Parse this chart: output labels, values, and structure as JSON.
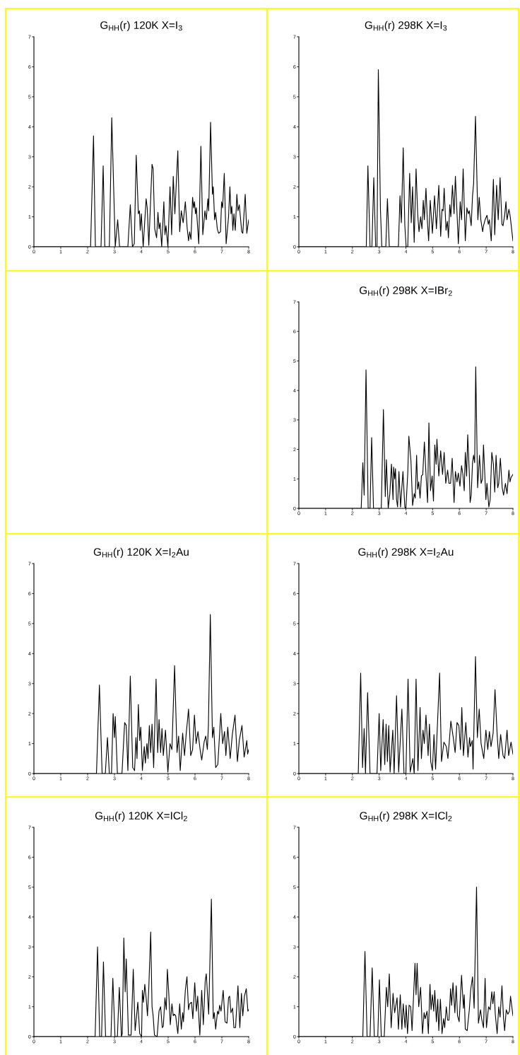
{
  "chart_data": [
    {
      "type": "line",
      "title": "G$_{HH}$(r) 120K X=I$_{3}$",
      "color": "#000000",
      "xlim": [
        0,
        8
      ],
      "ylim": [
        0,
        7
      ],
      "xticks": [
        0,
        1,
        2,
        3,
        4,
        5,
        6,
        7,
        8
      ],
      "yticks": [
        0,
        1,
        2,
        3,
        4,
        5,
        6,
        7
      ],
      "x": [
        0,
        2.11,
        2.22,
        2.29,
        2.5,
        2.58,
        2.64,
        2.81,
        2.9,
        3.03,
        3.12,
        3.19,
        3.5,
        3.59,
        3.67,
        3.74,
        3.81,
        3.89,
        3.93,
        3.96,
        4.0,
        4.07,
        4.18,
        4.22,
        4.28,
        4.4,
        4.44,
        4.5,
        4.57,
        4.62,
        4.66,
        4.7,
        4.76,
        4.84,
        4.88,
        4.92,
        4.99,
        5.07,
        5.13,
        5.19,
        5.25,
        5.36,
        5.43,
        5.49,
        5.56,
        5.64,
        5.71,
        5.76,
        5.8,
        5.85,
        5.91,
        5.95,
        5.98,
        6.02,
        6.05,
        6.14,
        6.22,
        6.29,
        6.37,
        6.42,
        6.48,
        6.51,
        6.58,
        6.65,
        6.68,
        6.73,
        6.77,
        6.83,
        6.88,
        6.95,
        6.99,
        7.03,
        7.09,
        7.16,
        7.25,
        7.3,
        7.34,
        7.37,
        7.41,
        7.45,
        7.5,
        7.56,
        7.6,
        7.65,
        7.74,
        7.78,
        7.87,
        7.93,
        8.0
      ],
      "values": [
        0,
        0,
        3.7,
        0,
        0,
        2.7,
        0,
        0,
        4.3,
        0,
        0.9,
        0,
        0,
        1.4,
        0,
        0.1,
        3.05,
        1.1,
        1.2,
        0.55,
        1.1,
        0,
        1.6,
        1.3,
        0.05,
        2.75,
        2.6,
        0.6,
        0.3,
        1.15,
        0.6,
        0.8,
        0,
        1.5,
        0.4,
        0.7,
        0,
        2.0,
        0.4,
        2.35,
        1.1,
        3.2,
        0.5,
        1.2,
        0.8,
        1.5,
        0.6,
        0.2,
        0.5,
        0.25,
        1.65,
        1.3,
        1.5,
        1.1,
        1.3,
        0.1,
        3.35,
        0.4,
        1.2,
        0.9,
        1.6,
        1.2,
        4.15,
        1.75,
        2.0,
        0.9,
        1.15,
        0.6,
        0.45,
        0.5,
        1.5,
        1.3,
        2.45,
        0.1,
        1.0,
        2.0,
        1.1,
        1.35,
        0.55,
        1.1,
        0.55,
        1.75,
        1.2,
        1.4,
        0.5,
        0.45,
        1.75,
        0.45,
        0.9
      ]
    },
    {
      "type": "line",
      "title": "G$_{HH}$(r) 298K X=I$_{3}$",
      "color": "#000000",
      "xlim": [
        0,
        8
      ],
      "ylim": [
        0,
        7
      ],
      "xticks": [
        0,
        1,
        2,
        3,
        4,
        5,
        6,
        7,
        8
      ],
      "yticks": [
        0,
        1,
        2,
        3,
        4,
        5,
        6,
        7
      ],
      "x": [
        0,
        2.52,
        2.58,
        2.66,
        2.73,
        2.8,
        2.87,
        2.92,
        2.97,
        3.05,
        3.1,
        3.25,
        3.31,
        3.38,
        3.72,
        3.78,
        3.83,
        3.9,
        3.96,
        4.01,
        4.07,
        4.14,
        4.2,
        4.25,
        4.31,
        4.38,
        4.44,
        4.49,
        4.55,
        4.6,
        4.65,
        4.69,
        4.75,
        4.8,
        4.85,
        4.91,
        4.99,
        5.07,
        5.14,
        5.23,
        5.3,
        5.35,
        5.39,
        5.43,
        5.5,
        5.55,
        5.59,
        5.64,
        5.68,
        5.74,
        5.8,
        5.85,
        5.96,
        6.03,
        6.08,
        6.14,
        6.22,
        6.28,
        6.33,
        6.37,
        6.44,
        6.49,
        6.53,
        6.6,
        6.69,
        6.74,
        6.8,
        6.87,
        6.9,
        6.96,
        7.03,
        7.08,
        7.12,
        7.19,
        7.27,
        7.32,
        7.39,
        7.45,
        7.52,
        7.59,
        7.63,
        7.69,
        7.74,
        7.78,
        7.85,
        7.9,
        8.0
      ],
      "values": [
        0,
        0,
        2.7,
        0,
        0,
        2.3,
        0,
        0,
        5.9,
        1.2,
        0,
        0,
        1.6,
        0,
        0,
        1.7,
        0.8,
        3.3,
        0.7,
        0,
        0,
        2.45,
        0.8,
        2.0,
        0.15,
        2.6,
        1.1,
        0.5,
        1.0,
        0.6,
        1.55,
        0.9,
        1.95,
        0.9,
        0.2,
        1.55,
        0.45,
        1.7,
        0.6,
        2.05,
        0.35,
        1.25,
        1.2,
        1.95,
        0.55,
        0.85,
        0.3,
        1.4,
        1.0,
        2.05,
        1.1,
        2.35,
        0.1,
        1.5,
        0.9,
        2.6,
        0.2,
        1.3,
        1.1,
        1.2,
        0.7,
        1.7,
        2.1,
        4.35,
        0.9,
        1.65,
        0.9,
        0.5,
        0.7,
        0.9,
        1.05,
        0.75,
        0.9,
        0.2,
        2.25,
        0.4,
        2.05,
        0.9,
        2.3,
        0.75,
        0.7,
        1.05,
        1.5,
        0.9,
        1.25,
        1.0,
        0.2
      ]
    },
    {
      "type": "line",
      "title": "G$_{HH}$(r) 298K X=IBr$_{2}$",
      "color": "#000000",
      "xlim": [
        0,
        8
      ],
      "ylim": [
        0,
        7
      ],
      "xticks": [
        0,
        1,
        2,
        3,
        4,
        5,
        6,
        7,
        8
      ],
      "yticks": [
        0,
        1,
        2,
        3,
        4,
        5,
        6,
        7
      ],
      "x": [
        0,
        2.33,
        2.39,
        2.44,
        2.51,
        2.59,
        2.66,
        2.72,
        2.79,
        3.08,
        3.16,
        3.23,
        3.27,
        3.34,
        3.4,
        3.46,
        3.52,
        3.54,
        3.58,
        3.61,
        3.65,
        3.69,
        3.74,
        3.8,
        3.89,
        3.96,
        4.0,
        4.07,
        4.11,
        4.19,
        4.25,
        4.31,
        4.35,
        4.4,
        4.44,
        4.48,
        4.53,
        4.58,
        4.63,
        4.69,
        4.76,
        4.81,
        4.86,
        4.92,
        4.98,
        5.03,
        5.08,
        5.13,
        5.16,
        5.23,
        5.3,
        5.37,
        5.43,
        5.49,
        5.56,
        5.61,
        5.67,
        5.73,
        5.8,
        5.85,
        5.91,
        5.96,
        6.02,
        6.08,
        6.13,
        6.18,
        6.22,
        6.27,
        6.31,
        6.37,
        6.4,
        6.44,
        6.49,
        6.53,
        6.57,
        6.61,
        6.68,
        6.75,
        6.81,
        6.86,
        6.9,
        6.99,
        7.03,
        7.1,
        7.15,
        7.21,
        7.27,
        7.32,
        7.37,
        7.43,
        7.47,
        7.53,
        7.6,
        7.65,
        7.72,
        7.78,
        7.85,
        7.89,
        7.93,
        8.0
      ],
      "values": [
        0,
        0,
        1.55,
        0.45,
        4.7,
        0,
        0,
        2.4,
        0,
        0,
        3.35,
        0.4,
        1.65,
        0,
        0.5,
        1.5,
        0.3,
        1.4,
        1.0,
        1.35,
        0.3,
        0.05,
        1.25,
        0.05,
        1.25,
        0.05,
        0,
        1.2,
        2.45,
        1.6,
        0.1,
        0.5,
        0.35,
        1.8,
        0.65,
        0.9,
        0.35,
        1.1,
        1.15,
        2.25,
        1.0,
        0.2,
        2.9,
        0.6,
        1.1,
        0.25,
        2.15,
        1.5,
        2.35,
        1.1,
        1.95,
        1.15,
        1.9,
        0.85,
        1.3,
        0.85,
        0.85,
        1.7,
        0.2,
        1.25,
        0.9,
        1.2,
        0.75,
        1.45,
        1.15,
        0.6,
        1.9,
        1.1,
        2.5,
        1.2,
        0.2,
        0.45,
        1.55,
        1.8,
        1.55,
        4.8,
        0.7,
        1.8,
        0.85,
        1.0,
        2.15,
        0.3,
        0.85,
        0.05,
        0.3,
        1.9,
        1.5,
        0.55,
        1.8,
        0.7,
        0.85,
        1.7,
        0.7,
        0.45,
        0.85,
        0.5,
        1.3,
        0.9,
        1.05,
        1.15
      ]
    },
    {
      "type": "line",
      "title": "G$_{HH}$(r) 120K X=I$_{2}$Au",
      "color": "#000000",
      "xlim": [
        0,
        8
      ],
      "ylim": [
        0,
        7
      ],
      "xticks": [
        0,
        1,
        2,
        3,
        4,
        5,
        6,
        7,
        8
      ],
      "yticks": [
        0,
        1,
        2,
        3,
        4,
        5,
        6,
        7
      ],
      "x": [
        0,
        2.33,
        2.44,
        2.54,
        2.66,
        2.74,
        2.81,
        2.89,
        2.95,
        3.0,
        3.03,
        3.11,
        3.28,
        3.38,
        3.44,
        3.5,
        3.59,
        3.68,
        3.75,
        3.8,
        3.84,
        3.89,
        3.94,
        3.98,
        4.04,
        4.11,
        4.15,
        4.21,
        4.25,
        4.3,
        4.35,
        4.4,
        4.46,
        4.55,
        4.61,
        4.66,
        4.72,
        4.77,
        4.82,
        4.9,
        4.99,
        5.07,
        5.14,
        5.24,
        5.33,
        5.39,
        5.45,
        5.54,
        5.61,
        5.67,
        5.76,
        5.84,
        5.91,
        5.98,
        6.04,
        6.11,
        6.19,
        6.25,
        6.34,
        6.4,
        6.46,
        6.5,
        6.57,
        6.65,
        6.7,
        6.77,
        6.85,
        6.96,
        7.03,
        7.1,
        7.15,
        7.22,
        7.31,
        7.39,
        7.49,
        7.58,
        7.65,
        7.75,
        7.83,
        7.93,
        7.96,
        8.0
      ],
      "values": [
        0,
        0,
        2.95,
        0,
        0,
        1.2,
        0,
        0,
        2.0,
        1.2,
        1.9,
        0,
        0,
        1.7,
        1.6,
        0.1,
        3.25,
        0.2,
        0.1,
        1.2,
        0.5,
        2.3,
        1.1,
        1.55,
        0.1,
        0.9,
        0.35,
        1.0,
        0.5,
        1.6,
        0.7,
        1.65,
        0.2,
        3.15,
        0.7,
        1.8,
        0.7,
        1.5,
        0.6,
        1.45,
        0.05,
        1.0,
        0.8,
        3.6,
        0.7,
        1.25,
        0.1,
        1.35,
        0.6,
        1.3,
        2.15,
        0.6,
        0.8,
        1.95,
        1.0,
        1.4,
        0.8,
        0.45,
        1.05,
        1.25,
        0.8,
        1.6,
        5.3,
        1.2,
        1.55,
        0.2,
        0.3,
        2.0,
        1.0,
        1.4,
        0.6,
        1.55,
        0.5,
        1.3,
        1.95,
        0.4,
        1.1,
        1.6,
        0.55,
        1.1,
        0.65,
        0.8
      ]
    },
    {
      "type": "line",
      "title": "G$_{HH}$(r) 298K X=I$_{2}$Au",
      "color": "#000000",
      "xlim": [
        0,
        8
      ],
      "ylim": [
        0,
        7
      ],
      "xticks": [
        0,
        1,
        2,
        3,
        4,
        5,
        6,
        7,
        8
      ],
      "yticks": [
        0,
        1,
        2,
        3,
        4,
        5,
        6,
        7
      ],
      "x": [
        0,
        2.22,
        2.31,
        2.38,
        2.44,
        2.49,
        2.57,
        2.66,
        2.92,
        3.0,
        3.06,
        3.15,
        3.21,
        3.26,
        3.31,
        3.36,
        3.41,
        3.51,
        3.56,
        3.65,
        3.73,
        3.85,
        3.93,
        4.0,
        4.08,
        4.16,
        4.26,
        4.31,
        4.38,
        4.45,
        4.53,
        4.58,
        4.64,
        4.69,
        4.75,
        4.83,
        4.88,
        4.93,
        4.99,
        5.05,
        5.11,
        5.17,
        5.26,
        5.33,
        5.42,
        5.51,
        5.57,
        5.62,
        5.68,
        5.77,
        5.84,
        5.91,
        5.98,
        6.04,
        6.09,
        6.15,
        6.24,
        6.32,
        6.38,
        6.41,
        6.48,
        6.51,
        6.6,
        6.67,
        6.74,
        6.81,
        6.91,
        6.99,
        7.06,
        7.12,
        7.18,
        7.26,
        7.33,
        7.41,
        7.47,
        7.54,
        7.63,
        7.69,
        7.78,
        7.84,
        7.93,
        8.0
      ],
      "values": [
        0,
        0,
        3.35,
        0.2,
        1.5,
        0,
        2.7,
        0,
        0,
        2.0,
        0.1,
        1.8,
        0.3,
        1.65,
        0.4,
        1.6,
        0.05,
        1.45,
        0,
        2.6,
        0.05,
        2.15,
        0,
        0,
        3.15,
        0.05,
        0.5,
        0,
        3.15,
        0.1,
        2.2,
        0.5,
        1.45,
        1.0,
        1.95,
        0.6,
        1.65,
        0.4,
        0.1,
        1.3,
        0.15,
        1.45,
        3.35,
        0.4,
        1.05,
        0.9,
        0.5,
        1.05,
        1.75,
        1.2,
        0.7,
        1.7,
        1.6,
        0.8,
        2.2,
        0.6,
        1.7,
        0.55,
        1.2,
        0.9,
        1.1,
        0.15,
        3.9,
        1.2,
        2.15,
        1.0,
        0.5,
        1.45,
        0.8,
        1.4,
        0.9,
        1.35,
        2.8,
        1.3,
        0.5,
        1.3,
        0.6,
        0.5,
        1.45,
        0.6,
        1.05,
        0.65
      ]
    },
    {
      "type": "line",
      "title": "G$_{HH}$(r) 120K X=ICl$_{2}$",
      "color": "#000000",
      "xlim": [
        0,
        8
      ],
      "ylim": [
        0,
        7
      ],
      "xticks": [
        0,
        1,
        2,
        3,
        4,
        5,
        6,
        7,
        8
      ],
      "yticks": [
        0,
        1,
        2,
        3,
        4,
        5,
        6,
        7
      ],
      "x": [
        0,
        2.28,
        2.37,
        2.45,
        2.52,
        2.59,
        2.67,
        2.87,
        2.94,
        3.02,
        3.11,
        3.18,
        3.26,
        3.29,
        3.35,
        3.4,
        3.44,
        3.52,
        3.62,
        3.7,
        3.77,
        3.82,
        3.87,
        3.94,
        4.01,
        4.04,
        4.08,
        4.13,
        4.18,
        4.23,
        4.28,
        4.35,
        4.4,
        4.44,
        4.49,
        4.59,
        4.66,
        4.72,
        4.78,
        4.82,
        4.88,
        4.93,
        4.97,
        5.02,
        5.08,
        5.14,
        5.19,
        5.23,
        5.28,
        5.36,
        5.43,
        5.49,
        5.54,
        5.57,
        5.64,
        5.7,
        5.76,
        5.8,
        5.87,
        5.92,
        5.99,
        6.05,
        6.1,
        6.18,
        6.25,
        6.31,
        6.38,
        6.42,
        6.51,
        6.61,
        6.68,
        6.72,
        6.77,
        6.84,
        6.88,
        6.92,
        6.97,
        7.05,
        7.12,
        7.19,
        7.25,
        7.29,
        7.34,
        7.4,
        7.45,
        7.51,
        7.6,
        7.67,
        7.73,
        7.78,
        7.84,
        7.91,
        7.97,
        8.0
      ],
      "values": [
        0,
        0,
        3.0,
        0,
        0,
        2.5,
        0,
        0,
        1.95,
        0,
        0,
        1.65,
        0,
        0.1,
        3.3,
        1.5,
        2.6,
        0.05,
        0.05,
        2.25,
        0.2,
        0.65,
        1.15,
        0.1,
        0,
        1.55,
        1.15,
        1.75,
        1.3,
        0.7,
        1.65,
        3.5,
        1.0,
        0.7,
        0.05,
        0,
        0.85,
        1.0,
        0.3,
        0.35,
        1.3,
        0.9,
        2.25,
        1.5,
        0.4,
        1.1,
        0.7,
        0.75,
        0.7,
        0.1,
        1.1,
        0.25,
        0.8,
        0.5,
        1.55,
        2.0,
        0.9,
        1.1,
        1.15,
        0.6,
        1.8,
        0.85,
        1.35,
        0.05,
        1.55,
        0.4,
        1.85,
        2.1,
        0.75,
        4.6,
        0.6,
        0.8,
        0.25,
        0.85,
        0.75,
        1.05,
        0.85,
        1.55,
        0.5,
        0.45,
        1.3,
        1.35,
        0.8,
        0.95,
        0.3,
        0.3,
        1.7,
        0.3,
        1.45,
        0.7,
        1.35,
        1.6,
        0.85,
        0.9
      ]
    },
    {
      "type": "line",
      "title": "G$_{HH}$(r) 298K X=ICl$_{2}$",
      "color": "#000000",
      "xlim": [
        0,
        8
      ],
      "ylim": [
        0,
        7
      ],
      "xticks": [
        0,
        1,
        2,
        3,
        4,
        5,
        6,
        7,
        8
      ],
      "yticks": [
        0,
        1,
        2,
        3,
        4,
        5,
        6,
        7
      ],
      "x": [
        0,
        2.39,
        2.47,
        2.55,
        2.66,
        2.74,
        2.82,
        2.95,
        3.01,
        3.08,
        3.19,
        3.27,
        3.32,
        3.38,
        3.45,
        3.52,
        3.58,
        3.67,
        3.72,
        3.79,
        3.85,
        3.9,
        3.97,
        4.01,
        4.06,
        4.12,
        4.18,
        4.23,
        4.34,
        4.38,
        4.42,
        4.48,
        4.55,
        4.62,
        4.68,
        4.72,
        4.79,
        4.84,
        4.9,
        4.94,
        4.99,
        5.04,
        5.08,
        5.14,
        5.19,
        5.23,
        5.29,
        5.35,
        5.41,
        5.45,
        5.51,
        5.56,
        5.61,
        5.67,
        5.71,
        5.76,
        5.83,
        5.88,
        5.93,
        5.99,
        6.08,
        6.15,
        6.18,
        6.22,
        6.29,
        6.37,
        6.42,
        6.49,
        6.55,
        6.64,
        6.71,
        6.79,
        6.83,
        6.9,
        6.96,
        7.01,
        7.09,
        7.15,
        7.21,
        7.25,
        7.3,
        7.34,
        7.41,
        7.47,
        7.52,
        7.59,
        7.65,
        7.69,
        7.75,
        7.81,
        7.87,
        7.91,
        8.0
      ],
      "values": [
        0,
        0,
        2.85,
        0,
        0,
        2.3,
        0,
        0,
        1.9,
        0,
        0,
        1.65,
        1.0,
        2.1,
        0.3,
        1.45,
        0.8,
        1.3,
        0.25,
        1.4,
        0.25,
        1.1,
        0.3,
        1.05,
        0.1,
        1.05,
        1.0,
        0.2,
        2.45,
        1.4,
        2.45,
        1.0,
        1.65,
        0.1,
        0.8,
        0.6,
        0.85,
        0.1,
        1.75,
        0.9,
        1.4,
        0.85,
        1.55,
        0.5,
        1.25,
        0.2,
        1.25,
        0.1,
        0.6,
        0.3,
        1.0,
        0.55,
        0.55,
        1.6,
        1.05,
        1.8,
        0.8,
        1.7,
        0.7,
        0.5,
        2.05,
        0.95,
        1.4,
        0.25,
        0.2,
        0.9,
        1.55,
        2.0,
        0.95,
        5.0,
        0.45,
        0.9,
        0.6,
        0.3,
        1.95,
        0.3,
        1.0,
        0.9,
        1.5,
        1.1,
        1.5,
        0.75,
        0.1,
        1.0,
        0.65,
        1.7,
        0.6,
        0.2,
        0.9,
        0.75,
        0.85,
        1.35,
        0.7
      ]
    }
  ]
}
